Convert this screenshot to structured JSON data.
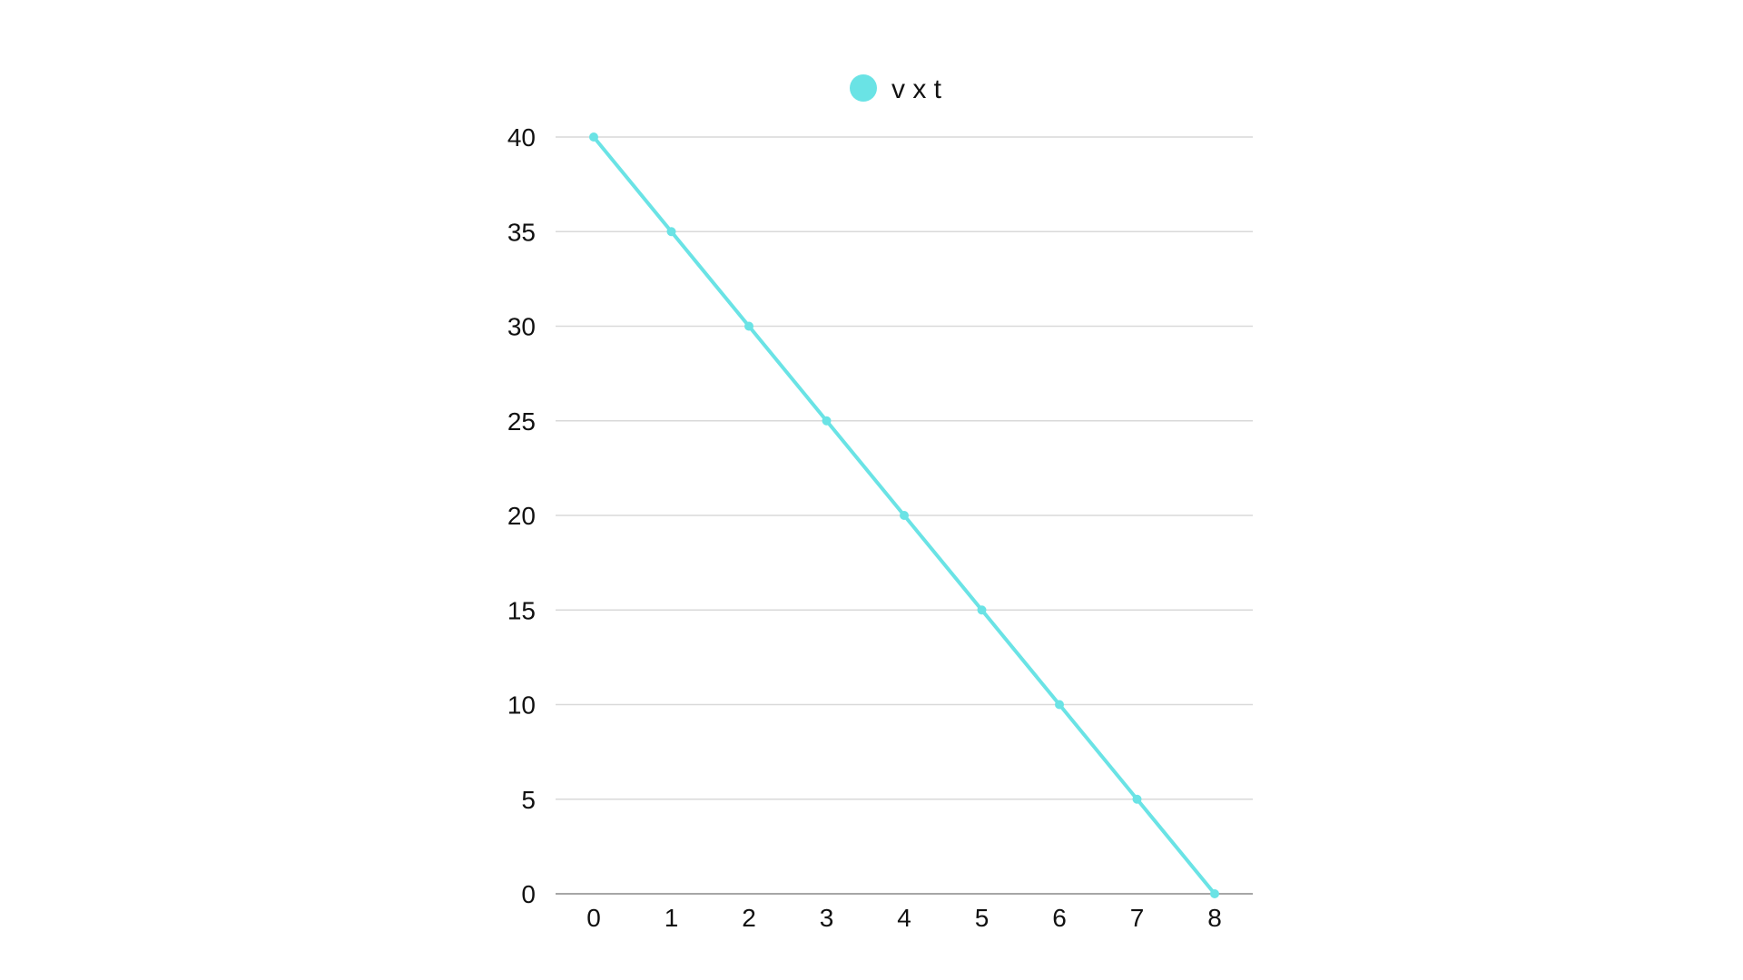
{
  "chart_data": {
    "type": "line",
    "title": "",
    "xlabel": "",
    "ylabel": "",
    "x": [
      0,
      1,
      2,
      3,
      4,
      5,
      6,
      7,
      8
    ],
    "series": [
      {
        "name": "v x t",
        "values": [
          40,
          35,
          30,
          25,
          20,
          15,
          10,
          5,
          0
        ],
        "color": "#6ae3e5"
      }
    ],
    "xlim": [
      0,
      8
    ],
    "ylim": [
      0,
      40
    ],
    "x_ticks": [
      "0",
      "1",
      "2",
      "3",
      "4",
      "5",
      "6",
      "7",
      "8"
    ],
    "y_ticks": [
      "0",
      "5",
      "10",
      "15",
      "20",
      "25",
      "30",
      "35",
      "40"
    ],
    "grid": true,
    "legend_position": "top-center",
    "colors": {
      "gridline": "#d9d9d9",
      "axis": "#a6a6a6",
      "text": "#111111"
    }
  }
}
